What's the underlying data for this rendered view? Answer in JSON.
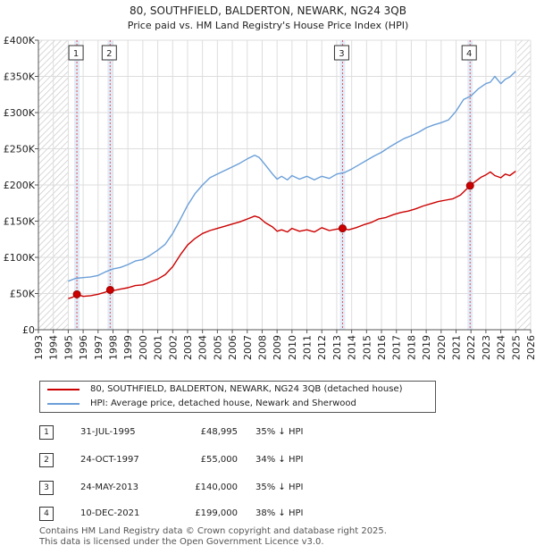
{
  "chart_data": {
    "type": "line",
    "title": "80, SOUTHFIELD, BALDERTON, NEWARK, NG24 3QB",
    "subtitle": "Price paid vs. HM Land Registry's House Price Index (HPI)",
    "xlim": [
      1993,
      2026
    ],
    "ylim": [
      0,
      400000
    ],
    "y_ticks": [
      0,
      50000,
      100000,
      150000,
      200000,
      250000,
      300000,
      350000,
      400000
    ],
    "y_tick_labels": [
      "£0",
      "£50K",
      "£100K",
      "£150K",
      "£200K",
      "£250K",
      "£300K",
      "£350K",
      "£400K"
    ],
    "x_ticks": [
      1993,
      1994,
      1995,
      1996,
      1997,
      1998,
      1999,
      2000,
      2001,
      2002,
      2003,
      2004,
      2005,
      2006,
      2007,
      2008,
      2009,
      2010,
      2011,
      2012,
      2013,
      2014,
      2015,
      2016,
      2017,
      2018,
      2019,
      2020,
      2021,
      2022,
      2023,
      2024,
      2025,
      2026
    ],
    "x_tick_labels": [
      "1993",
      "1994",
      "1995",
      "1996",
      "1997",
      "1998",
      "1999",
      "2000",
      "2001",
      "2002",
      "2003",
      "2004",
      "2005",
      "2006",
      "2007",
      "2008",
      "2009",
      "2010",
      "2011",
      "2012",
      "2013",
      "2014",
      "2015",
      "2016",
      "2017",
      "2018",
      "2019",
      "2020",
      "2021",
      "2022",
      "2023",
      "2024",
      "2025",
      "2026"
    ],
    "grid": true,
    "hatched_before": 1995.0,
    "hatched_after": 2025.1,
    "series": [
      {
        "name": "80, SOUTHFIELD, BALDERTON, NEWARK, NG24 3QB (detached house)",
        "color": "#cc0000",
        "x": [
          1995.0,
          1995.3,
          1995.58,
          1996.0,
          1996.5,
          1997.0,
          1997.5,
          1997.81,
          1998.0,
          1998.5,
          1999.0,
          1999.5,
          2000.0,
          2000.5,
          2001.0,
          2001.5,
          2002.0,
          2002.5,
          2003.0,
          2003.5,
          2004.0,
          2004.5,
          2005.0,
          2005.5,
          2006.0,
          2006.5,
          2007.0,
          2007.5,
          2007.8,
          2008.2,
          2008.7,
          2009.0,
          2009.3,
          2009.7,
          2010.0,
          2010.5,
          2011.0,
          2011.5,
          2012.0,
          2012.5,
          2013.0,
          2013.39,
          2013.8,
          2014.3,
          2014.8,
          2015.3,
          2015.8,
          2016.3,
          2016.8,
          2017.3,
          2017.8,
          2018.3,
          2018.8,
          2019.3,
          2019.8,
          2020.3,
          2020.8,
          2021.3,
          2021.94,
          2022.3,
          2022.7,
          2023.0,
          2023.3,
          2023.6,
          2024.0,
          2024.3,
          2024.6,
          2025.0
        ],
        "values": [
          43000,
          45000,
          48995,
          46000,
          47000,
          49000,
          52000,
          55000,
          54000,
          56000,
          58000,
          61000,
          62000,
          66000,
          70000,
          76000,
          87000,
          103000,
          117000,
          126000,
          133000,
          137000,
          140000,
          143000,
          146000,
          149000,
          153000,
          157000,
          155000,
          148000,
          142000,
          136000,
          138000,
          135000,
          140000,
          136000,
          138000,
          135000,
          141000,
          137000,
          139000,
          140000,
          138000,
          141000,
          145000,
          148000,
          153000,
          155000,
          159000,
          162000,
          164000,
          167000,
          171000,
          174000,
          177000,
          179000,
          181000,
          186000,
          199000,
          205000,
          211000,
          214000,
          218000,
          213000,
          210000,
          215000,
          213000,
          219000
        ]
      },
      {
        "name": "HPI: Average price, detached house, Newark and Sherwood",
        "color": "#6a9fd8",
        "x": [
          1995.0,
          1995.5,
          1996.0,
          1996.5,
          1997.0,
          1997.5,
          1998.0,
          1998.5,
          1999.0,
          1999.5,
          2000.0,
          2000.5,
          2001.0,
          2001.5,
          2002.0,
          2002.5,
          2003.0,
          2003.5,
          2004.0,
          2004.5,
          2005.0,
          2005.5,
          2006.0,
          2006.5,
          2007.0,
          2007.5,
          2007.8,
          2008.2,
          2008.7,
          2009.0,
          2009.3,
          2009.7,
          2010.0,
          2010.5,
          2011.0,
          2011.5,
          2012.0,
          2012.5,
          2013.0,
          2013.5,
          2014.0,
          2014.5,
          2015.0,
          2015.5,
          2016.0,
          2016.5,
          2017.0,
          2017.5,
          2018.0,
          2018.5,
          2019.0,
          2019.5,
          2020.0,
          2020.5,
          2021.0,
          2021.5,
          2022.0,
          2022.5,
          2023.0,
          2023.3,
          2023.6,
          2024.0,
          2024.3,
          2024.6,
          2025.0
        ],
        "values": [
          67000,
          71000,
          72000,
          73000,
          75000,
          80000,
          84000,
          86000,
          90000,
          95000,
          97000,
          103000,
          110000,
          118000,
          133000,
          152000,
          172000,
          188000,
          200000,
          210000,
          215000,
          220000,
          225000,
          230000,
          236000,
          241000,
          238000,
          228000,
          215000,
          208000,
          212000,
          207000,
          213000,
          208000,
          212000,
          207000,
          212000,
          209000,
          215000,
          217000,
          222000,
          228000,
          234000,
          240000,
          245000,
          252000,
          258000,
          264000,
          268000,
          273000,
          279000,
          283000,
          286000,
          290000,
          302000,
          318000,
          323000,
          333000,
          340000,
          342000,
          350000,
          340000,
          346000,
          349000,
          357000
        ]
      }
    ],
    "markers": [
      {
        "label": "1",
        "x": 1995.58,
        "y": 48995
      },
      {
        "label": "2",
        "x": 1997.81,
        "y": 55000
      },
      {
        "label": "3",
        "x": 2013.39,
        "y": 140000
      },
      {
        "label": "4",
        "x": 2021.94,
        "y": 199000
      }
    ]
  },
  "legend": {
    "property_label": "80, SOUTHFIELD, BALDERTON, NEWARK, NG24 3QB (detached house)",
    "hpi_label": "HPI: Average price, detached house, Newark and Sherwood"
  },
  "transactions": [
    {
      "num": "1",
      "date": "31-JUL-1995",
      "price": "£48,995",
      "hpi": "35% ↓ HPI"
    },
    {
      "num": "2",
      "date": "24-OCT-1997",
      "price": "£55,000",
      "hpi": "34% ↓ HPI"
    },
    {
      "num": "3",
      "date": "24-MAY-2013",
      "price": "£140,000",
      "hpi": "35% ↓ HPI"
    },
    {
      "num": "4",
      "date": "10-DEC-2021",
      "price": "£199,000",
      "hpi": "38% ↓ HPI"
    }
  ],
  "footer": {
    "line1": "Contains HM Land Registry data © Crown copyright and database right 2025.",
    "line2": "This data is licensed under the Open Government Licence v3.0."
  }
}
